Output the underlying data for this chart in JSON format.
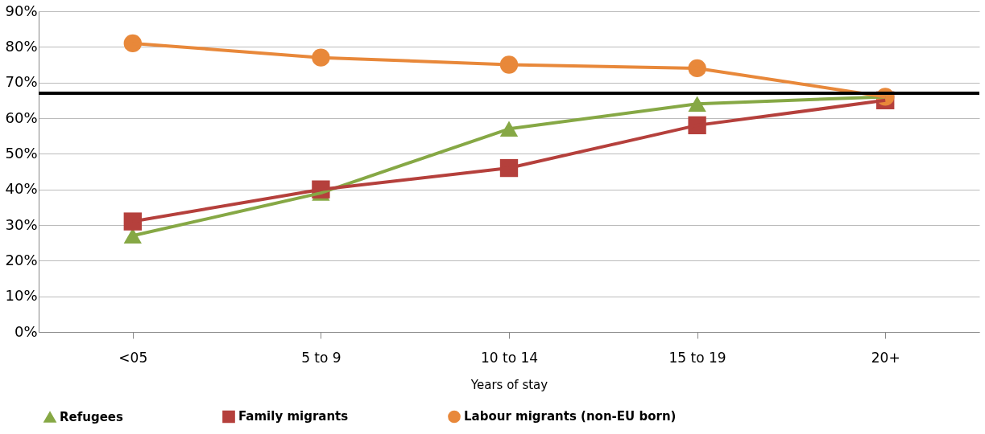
{
  "chart_data": {
    "type": "line",
    "xlabel": "Years of stay",
    "categories": [
      "<05",
      "5 to 9",
      "10 to 14",
      "15 to 19",
      "20+"
    ],
    "series": [
      {
        "name": "Refugees",
        "color": "#86a845",
        "marker": "triangle",
        "values": [
          27,
          39,
          57,
          64,
          66
        ]
      },
      {
        "name": "Family migrants",
        "color": "#b5403c",
        "marker": "square",
        "values": [
          31,
          40,
          46,
          58,
          65
        ]
      },
      {
        "name": "Labour migrants (non-EU born)",
        "color": "#e8883a",
        "marker": "circle",
        "values": [
          81,
          77,
          75,
          74,
          66
        ]
      }
    ],
    "ylim": [
      0,
      90
    ],
    "yticks": [
      {
        "value": 0,
        "label": "0%"
      },
      {
        "value": 10,
        "label": "10%"
      },
      {
        "value": 20,
        "label": "20%"
      },
      {
        "value": 30,
        "label": "30%"
      },
      {
        "value": 40,
        "label": "40%"
      },
      {
        "value": 50,
        "label": "50%"
      },
      {
        "value": 60,
        "label": "60%"
      },
      {
        "value": 70,
        "label": "70%"
      },
      {
        "value": 80,
        "label": "80%"
      },
      {
        "value": 90,
        "label": "90%"
      }
    ],
    "ref_lines": [
      {
        "axis": "y",
        "value": 67,
        "color": "#000000"
      }
    ],
    "grid": "y",
    "legend": "bottom",
    "line_style": "solid"
  }
}
